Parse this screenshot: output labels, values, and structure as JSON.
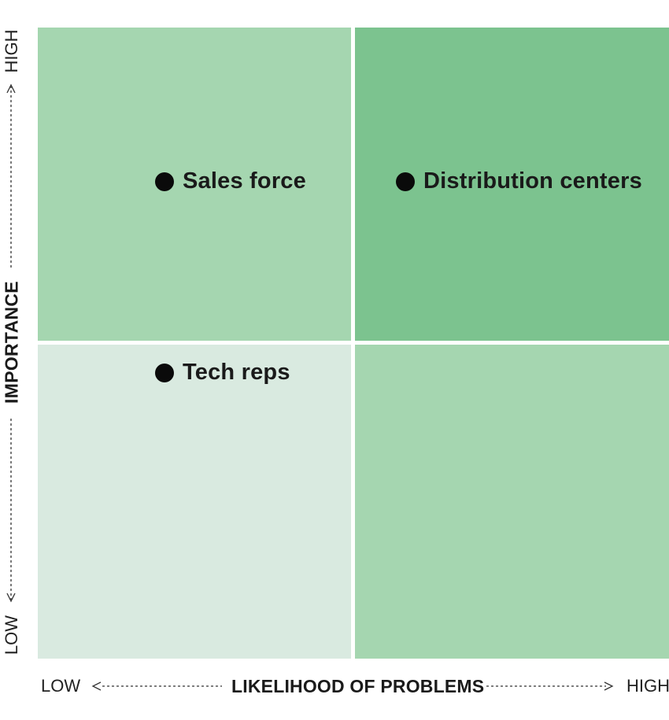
{
  "quadrants": {
    "top_left": {
      "color": "#a5d6b0"
    },
    "top_right": {
      "color": "#7cc38f"
    },
    "bottom_left": {
      "color": "#d9eae0"
    },
    "bottom_right": {
      "color": "#a5d6b0"
    }
  },
  "items": {
    "sales_force": {
      "label": "Sales force"
    },
    "distribution_centers": {
      "label": "Distribution centers"
    },
    "tech_reps": {
      "label": "Tech reps"
    }
  },
  "y_axis": {
    "title": "IMPORTANCE",
    "low": "LOW",
    "high": "HIGH"
  },
  "x_axis": {
    "title": "LIKELIHOOD OF PROBLEMS",
    "low": "LOW",
    "high": "HIGH"
  }
}
